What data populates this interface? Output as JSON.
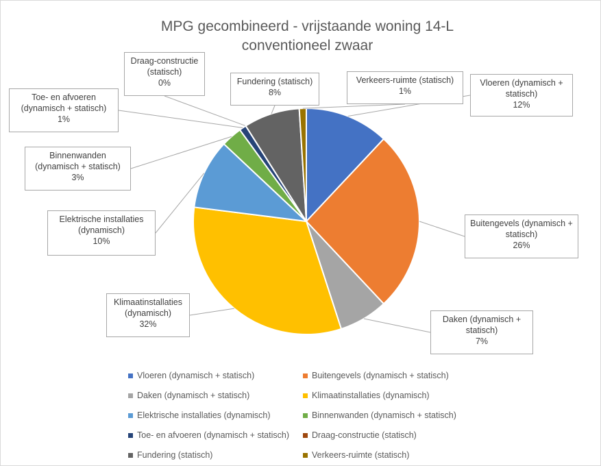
{
  "chart_data": {
    "type": "pie",
    "title": "MPG gecombineerd - vrijstaande woning 14-L conventioneel zwaar",
    "categories": [
      "Vloeren (dynamisch + statisch)",
      "Buitengevels (dynamisch + statisch)",
      "Daken (dynamisch + statisch)",
      "Klimaatinstallaties (dynamisch)",
      "Elektrische installaties (dynamisch)",
      "Binnenwanden (dynamisch + statisch)",
      "Toe- en afvoeren (dynamisch + statisch)",
      "Draag-constructie (statisch)",
      "Fundering (statisch)",
      "Verkeers-ruimte (statisch)"
    ],
    "values": [
      12,
      26,
      7,
      32,
      10,
      3,
      1,
      0,
      8,
      1
    ],
    "value_labels": [
      "12%",
      "26%",
      "7%",
      "32%",
      "10%",
      "3%",
      "1%",
      "0%",
      "8%",
      "1%"
    ],
    "colors": [
      "#4472c4",
      "#ed7d31",
      "#a5a5a5",
      "#ffc000",
      "#5b9bd5",
      "#70ad47",
      "#264478",
      "#9e480e",
      "#636363",
      "#997300"
    ],
    "legend": "bottom"
  }
}
